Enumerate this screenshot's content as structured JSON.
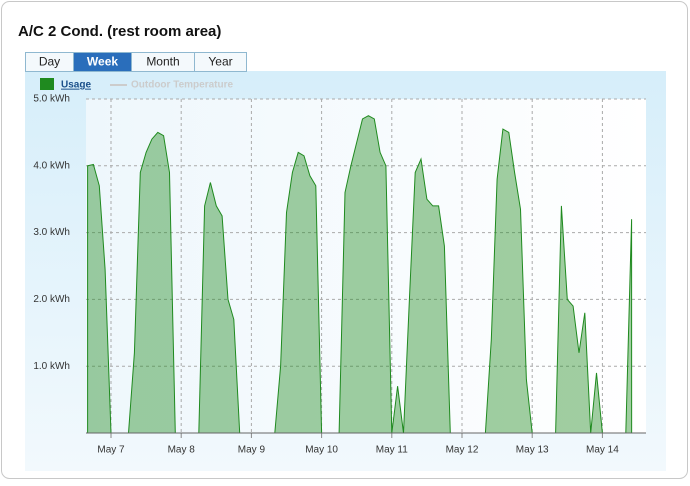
{
  "title": "A/C 2 Cond. (rest room area)",
  "tabs": [
    "Day",
    "Week",
    "Month",
    "Year"
  ],
  "active_tab": 1,
  "chart_data": {
    "type": "area",
    "categories": [
      null,
      null,
      null,
      null,
      "May 7",
      null,
      null,
      null,
      null,
      null,
      null,
      null,
      null,
      null,
      null,
      null,
      "May 8",
      null,
      null,
      null,
      null,
      null,
      null,
      null,
      null,
      null,
      null,
      null,
      "May 9",
      null,
      null,
      null,
      null,
      null,
      null,
      null,
      null,
      null,
      null,
      null,
      "May 10",
      null,
      null,
      null,
      null,
      null,
      null,
      null,
      null,
      null,
      null,
      null,
      "May 11",
      null,
      null,
      null,
      null,
      null,
      null,
      null,
      null,
      null,
      null,
      null,
      "May 12",
      null,
      null,
      null,
      null,
      null,
      null,
      null,
      null,
      null,
      null,
      null,
      "May 13",
      null,
      null,
      null,
      null,
      null,
      null,
      null,
      null,
      null,
      null,
      null,
      "May 14",
      null,
      null,
      null,
      null,
      null
    ],
    "series": [
      {
        "name": "Usage",
        "color": "#1f8a1f",
        "values": [
          4.0,
          4.02,
          3.7,
          2.45,
          0,
          0,
          0,
          0,
          1.2,
          3.9,
          4.2,
          4.4,
          4.5,
          4.45,
          3.9,
          0,
          0,
          0,
          0,
          0,
          3.4,
          3.75,
          3.4,
          3.25,
          2.0,
          1.7,
          0,
          0,
          0,
          0,
          0,
          0,
          0,
          1.0,
          3.3,
          3.9,
          4.2,
          4.15,
          3.85,
          3.7,
          0,
          0,
          0,
          0,
          3.6,
          4.0,
          4.35,
          4.7,
          4.75,
          4.7,
          4.2,
          4.0,
          0,
          0.7,
          0,
          2.0,
          3.9,
          4.1,
          3.5,
          3.4,
          3.4,
          2.8,
          0,
          0,
          0,
          0,
          0,
          0,
          0,
          1.4,
          3.8,
          4.55,
          4.5,
          3.9,
          3.35,
          0.8,
          0,
          0,
          0,
          0,
          0,
          3.4,
          2.0,
          1.9,
          1.2,
          1.8,
          0,
          0.9,
          0,
          0,
          0,
          0,
          0,
          3.2
        ]
      }
    ],
    "inactive_legend": {
      "name": "Outdoor Temperature",
      "color": "#cccccc"
    },
    "ylim": [
      0,
      5
    ],
    "yticks": [
      {
        "value": 1,
        "label": "1.0 kWh"
      },
      {
        "value": 2,
        "label": "2.0 kWh"
      },
      {
        "value": 3,
        "label": "3.0 kWh"
      },
      {
        "value": 4,
        "label": "4.0 kWh"
      },
      {
        "value": 5,
        "label": "5.0 kWh"
      }
    ],
    "grid": true
  }
}
